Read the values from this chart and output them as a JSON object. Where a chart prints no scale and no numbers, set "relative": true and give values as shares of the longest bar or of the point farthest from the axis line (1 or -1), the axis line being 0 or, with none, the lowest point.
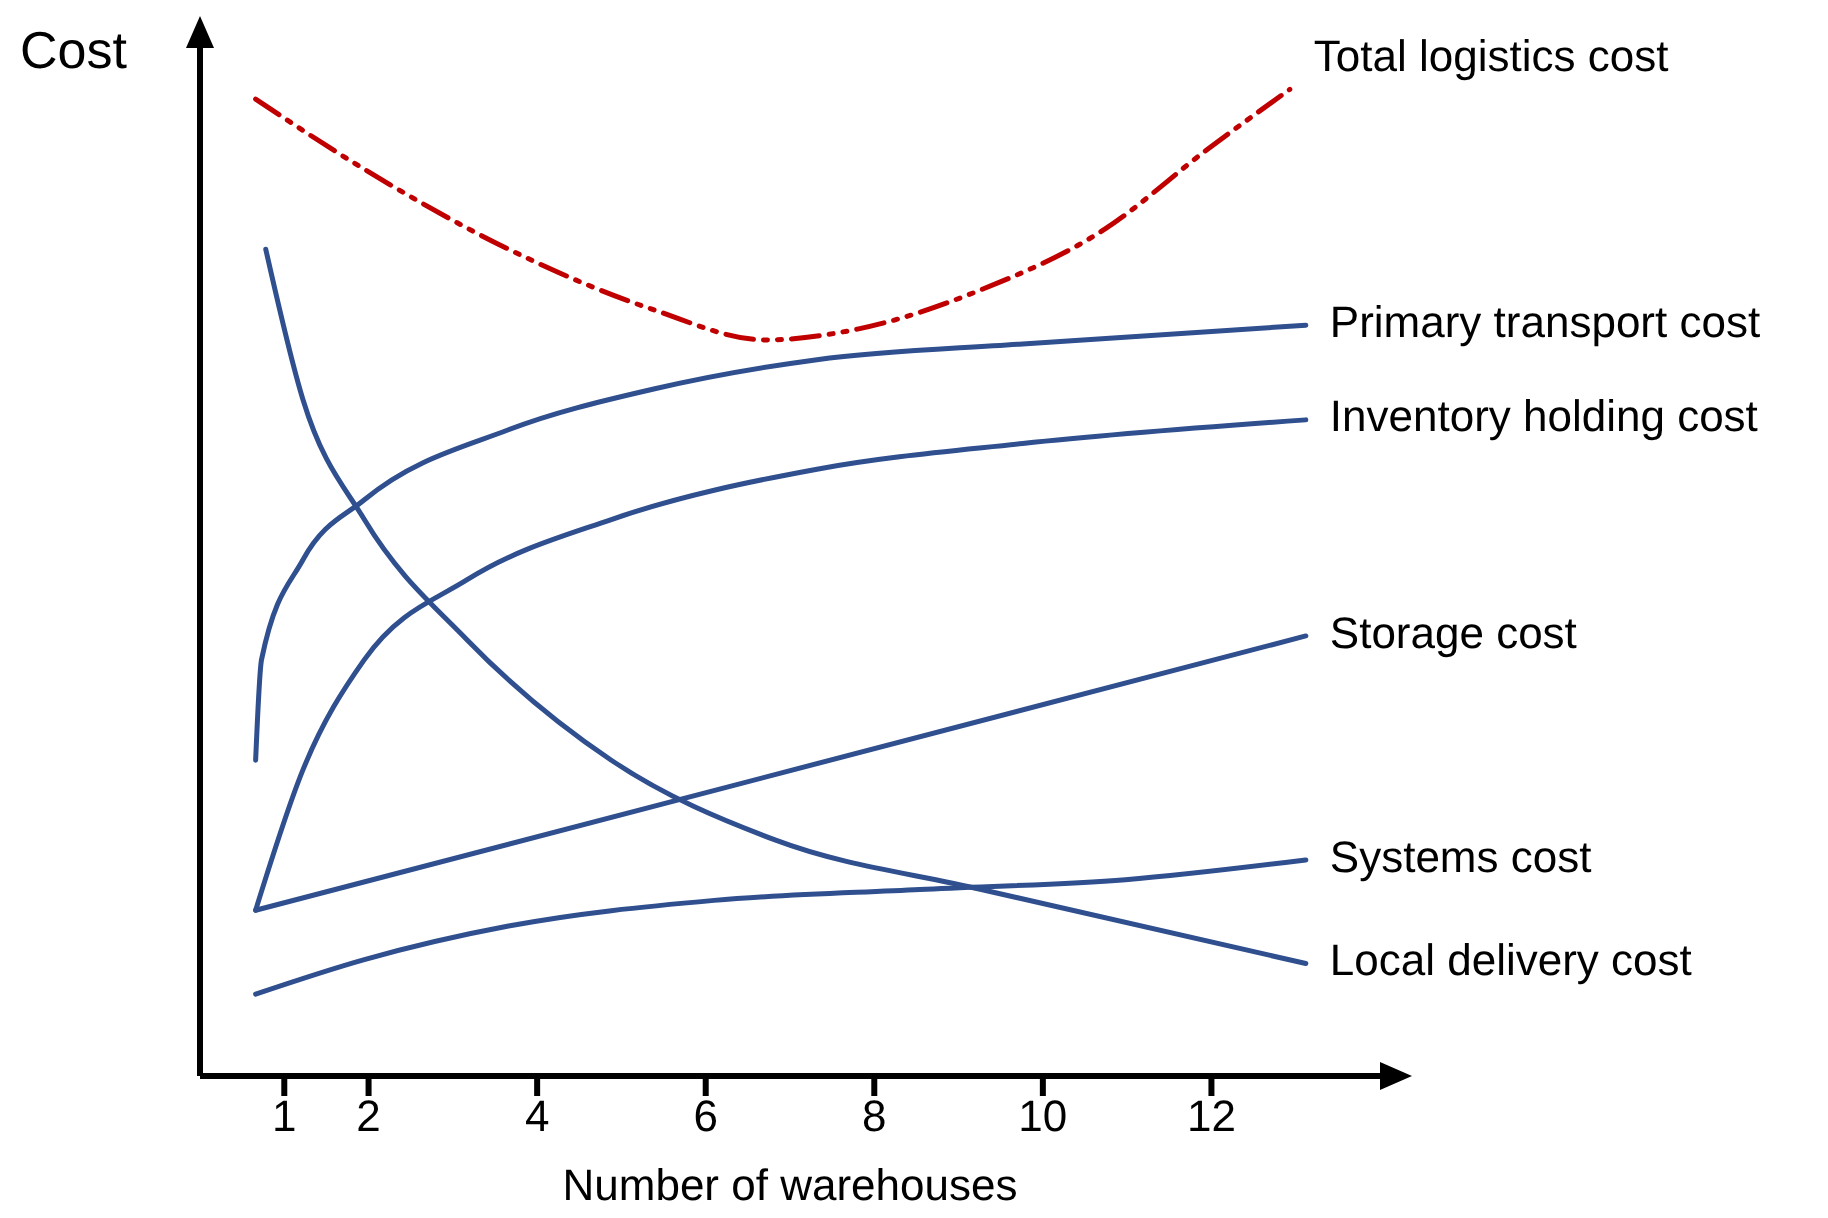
{
  "chart_data": {
    "type": "line",
    "xlabel": "Number of warehouses",
    "ylabel": "Cost",
    "relative": true,
    "xlim": [
      0,
      14
    ],
    "xticks": [
      1,
      2,
      4,
      6,
      8,
      10,
      12
    ],
    "grid": false,
    "legend": false,
    "marker": "none",
    "series": [
      {
        "name": "Total logistics cost",
        "color": "#c00000",
        "line_style": "dashed",
        "x": [
          0.66,
          1.95,
          3.66,
          5.37,
          6.71,
          7.8,
          9.27,
          10.73,
          11.95,
          12.93
        ],
        "values": [
          0.99,
          0.919,
          0.838,
          0.777,
          0.746,
          0.757,
          0.797,
          0.858,
          0.939,
          1.0
        ]
      },
      {
        "name": "Primary transport cost",
        "color": "#2f4f8f",
        "line_style": "solid",
        "x": [
          0.66,
          0.73,
          1.22,
          1.95,
          3.66,
          5.37,
          7.32,
          9.76,
          13.12
        ],
        "values": [
          0.32,
          0.422,
          0.523,
          0.584,
          0.655,
          0.696,
          0.726,
          0.742,
          0.761
        ]
      },
      {
        "name": "Inventory holding cost",
        "color": "#2f4f8f",
        "line_style": "solid",
        "x": [
          0.66,
          1.22,
          1.95,
          3.17,
          4.88,
          7.32,
          9.76,
          13.12
        ],
        "values": [
          0.168,
          0.31,
          0.422,
          0.503,
          0.564,
          0.615,
          0.641,
          0.665
        ]
      },
      {
        "name": "Storage cost",
        "color": "#2f4f8f",
        "line_style": "solid",
        "x": [
          0.66,
          13.12
        ],
        "values": [
          0.168,
          0.446
        ]
      },
      {
        "name": "Systems cost",
        "color": "#2f4f8f",
        "line_style": "solid",
        "x": [
          0.66,
          1.95,
          3.66,
          6.1,
          8.54,
          10.98,
          13.12
        ],
        "values": [
          0.083,
          0.118,
          0.152,
          0.178,
          0.189,
          0.199,
          0.219
        ]
      },
      {
        "name": "Local delivery cost",
        "color": "#2f4f8f",
        "line_style": "solid",
        "x": [
          0.78,
          1.22,
          1.95,
          3.17,
          4.88,
          6.83,
          9.27,
          13.12
        ],
        "values": [
          0.838,
          0.686,
          0.564,
          0.442,
          0.32,
          0.239,
          0.189,
          0.114
        ]
      }
    ]
  }
}
